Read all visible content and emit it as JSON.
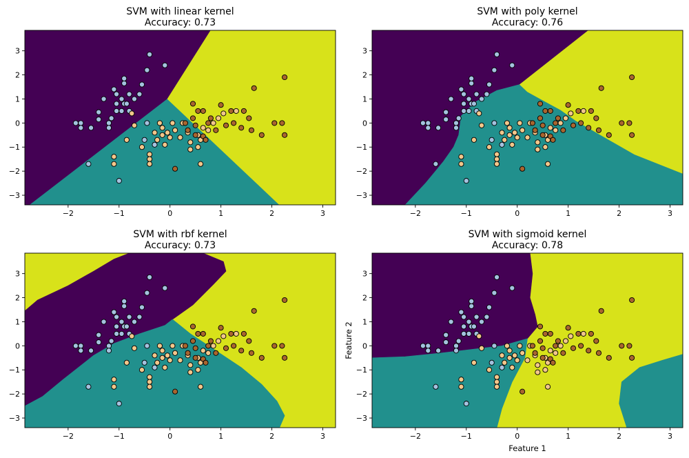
{
  "chart_data": [
    {
      "type": "scatter",
      "title": "SVM with linear kernel",
      "subtitle": "Accuracy: 0.73",
      "kernel": "linear",
      "xlabel": "",
      "ylabel": "",
      "xlim": [
        -2.85,
        3.25
      ],
      "ylim": [
        -3.4,
        3.85
      ],
      "xticks": [
        -2,
        -1,
        0,
        1,
        2,
        3
      ],
      "yticks": [
        -3,
        -2,
        -1,
        0,
        1,
        2,
        3
      ],
      "grid": false,
      "regions": [
        {
          "class": 0,
          "color": "#440154",
          "polygon": [
            [
              -2.85,
              -3.4
            ],
            [
              -2.85,
              3.85
            ],
            [
              0.8,
              3.85
            ],
            [
              -0.05,
              1.0
            ],
            [
              -2.75,
              -3.4
            ]
          ]
        },
        {
          "class": 1,
          "color": "#21908d",
          "polygon": [
            [
              -2.75,
              -3.4
            ],
            [
              -0.05,
              1.0
            ],
            [
              2.15,
              -3.4
            ]
          ]
        },
        {
          "class": 2,
          "color": "#d8e21a",
          "polygon": [
            [
              2.15,
              -3.4
            ],
            [
              -0.05,
              1.0
            ],
            [
              0.8,
              3.85
            ],
            [
              3.25,
              3.85
            ],
            [
              3.25,
              -3.4
            ]
          ]
        }
      ]
    },
    {
      "type": "scatter",
      "title": "SVM with poly kernel",
      "subtitle": "Accuracy: 0.76",
      "kernel": "poly",
      "xlabel": "",
      "ylabel": "",
      "xlim": [
        -2.85,
        3.25
      ],
      "ylim": [
        -3.4,
        3.85
      ],
      "xticks": [
        -2,
        -1,
        0,
        1,
        2,
        3
      ],
      "yticks": [
        -3,
        -2,
        -1,
        0,
        1,
        2,
        3
      ],
      "grid": false,
      "regions": [
        {
          "class": 0,
          "color": "#440154",
          "polygon": [
            [
              -2.85,
              -3.4
            ],
            [
              -2.85,
              3.85
            ],
            [
              1.4,
              3.85
            ],
            [
              0.05,
              1.6
            ],
            [
              -0.4,
              1.35
            ],
            [
              -0.8,
              0.9
            ],
            [
              -1.1,
              0.3
            ],
            [
              -1.15,
              -0.5
            ],
            [
              -1.25,
              -1.0
            ],
            [
              -1.45,
              -1.6
            ],
            [
              -1.8,
              -2.5
            ],
            [
              -2.2,
              -3.4
            ]
          ]
        },
        {
          "class": 1,
          "color": "#21908d",
          "polygon": [
            [
              -2.2,
              -3.4
            ],
            [
              -1.8,
              -2.5
            ],
            [
              -1.45,
              -1.6
            ],
            [
              -1.25,
              -1.0
            ],
            [
              -1.15,
              -0.5
            ],
            [
              -1.1,
              0.3
            ],
            [
              -0.8,
              0.9
            ],
            [
              -0.4,
              1.35
            ],
            [
              0.05,
              1.6
            ],
            [
              0.2,
              1.3
            ],
            [
              0.5,
              0.95
            ],
            [
              0.85,
              0.55
            ],
            [
              1.15,
              0.1
            ],
            [
              1.6,
              -0.45
            ],
            [
              2.3,
              -1.3
            ],
            [
              3.25,
              -2.1
            ],
            [
              3.25,
              -3.4
            ]
          ]
        },
        {
          "class": 2,
          "color": "#d8e21a",
          "polygon": [
            [
              0.05,
              1.6
            ],
            [
              1.4,
              3.85
            ],
            [
              3.25,
              3.85
            ],
            [
              3.25,
              -2.1
            ],
            [
              2.3,
              -1.3
            ],
            [
              1.6,
              -0.45
            ],
            [
              1.15,
              0.1
            ],
            [
              0.85,
              0.55
            ],
            [
              0.5,
              0.95
            ],
            [
              0.2,
              1.3
            ]
          ]
        }
      ]
    },
    {
      "type": "scatter",
      "title": "SVM with rbf kernel",
      "subtitle": "Accuracy: 0.73",
      "kernel": "rbf",
      "xlabel": "",
      "ylabel": "",
      "xlim": [
        -2.85,
        3.25
      ],
      "ylim": [
        -3.4,
        3.85
      ],
      "xticks": [
        -2,
        -1,
        0,
        1,
        2,
        3
      ],
      "yticks": [
        -3,
        -2,
        -1,
        0,
        1,
        2,
        3
      ],
      "grid": false,
      "regions": [
        {
          "class": 2,
          "color": "#d8e21a",
          "polygon": [
            [
              -2.85,
              -3.4
            ],
            [
              -2.85,
              3.85
            ],
            [
              3.25,
              3.85
            ],
            [
              3.25,
              -3.4
            ]
          ]
        },
        {
          "class": 0,
          "color": "#440154",
          "polygon": [
            [
              -2.85,
              -2.5
            ],
            [
              -2.85,
              1.45
            ],
            [
              -2.6,
              1.9
            ],
            [
              -2.0,
              2.5
            ],
            [
              -1.5,
              3.1
            ],
            [
              -1.1,
              3.6
            ],
            [
              -0.8,
              3.85
            ],
            [
              0.65,
              3.85
            ],
            [
              1.05,
              3.5
            ],
            [
              1.1,
              3.1
            ],
            [
              0.85,
              2.55
            ],
            [
              0.45,
              1.7
            ],
            [
              0.05,
              1.1
            ],
            [
              -0.1,
              0.85
            ],
            [
              -0.6,
              0.5
            ],
            [
              -1.1,
              0.1
            ],
            [
              -1.5,
              -0.4
            ],
            [
              -2.1,
              -1.4
            ],
            [
              -2.5,
              -2.1
            ]
          ]
        },
        {
          "class": 1,
          "color": "#21908d",
          "polygon": [
            [
              -2.85,
              -3.4
            ],
            [
              -2.85,
              -2.5
            ],
            [
              -2.5,
              -2.1
            ],
            [
              -2.1,
              -1.4
            ],
            [
              -1.5,
              -0.4
            ],
            [
              -1.1,
              0.1
            ],
            [
              -0.6,
              0.5
            ],
            [
              -0.1,
              0.85
            ],
            [
              0.05,
              1.1
            ],
            [
              0.4,
              0.5
            ],
            [
              0.9,
              -0.2
            ],
            [
              1.4,
              -0.9
            ],
            [
              1.8,
              -1.6
            ],
            [
              2.1,
              -2.3
            ],
            [
              2.25,
              -2.9
            ],
            [
              2.15,
              -3.4
            ]
          ]
        }
      ]
    },
    {
      "type": "scatter",
      "title": "SVM with sigmoid kernel",
      "subtitle": "Accuracy: 0.78",
      "kernel": "sigmoid",
      "xlabel": "Feature 1",
      "ylabel": "Feature 2",
      "xlim": [
        -2.85,
        3.25
      ],
      "ylim": [
        -3.4,
        3.85
      ],
      "xticks": [
        -2,
        -1,
        0,
        1,
        2,
        3
      ],
      "yticks": [
        -3,
        -2,
        -1,
        0,
        1,
        2,
        3
      ],
      "grid": false,
      "regions": [
        {
          "class": 2,
          "color": "#d8e21a",
          "polygon": [
            [
              -2.85,
              -3.4
            ],
            [
              -2.85,
              3.85
            ],
            [
              3.25,
              3.85
            ],
            [
              3.25,
              -3.4
            ]
          ]
        },
        {
          "class": 0,
          "color": "#440154",
          "polygon": [
            [
              -2.85,
              -0.5
            ],
            [
              -2.85,
              3.85
            ],
            [
              0.25,
              3.85
            ],
            [
              0.3,
              3.0
            ],
            [
              0.25,
              2.0
            ],
            [
              0.35,
              1.3
            ],
            [
              0.4,
              0.8
            ],
            [
              0.2,
              0.3
            ],
            [
              -0.3,
              0.0
            ],
            [
              -0.9,
              -0.15
            ],
            [
              -1.5,
              -0.3
            ],
            [
              -2.2,
              -0.45
            ]
          ]
        },
        {
          "class": 1,
          "color": "#21908d",
          "polygon": [
            [
              -2.85,
              -3.4
            ],
            [
              -2.85,
              -0.5
            ],
            [
              -2.2,
              -0.45
            ],
            [
              -1.5,
              -0.3
            ],
            [
              -0.9,
              -0.15
            ],
            [
              -0.3,
              0.0
            ],
            [
              0.2,
              0.3
            ],
            [
              0.15,
              -0.5
            ],
            [
              -0.1,
              -1.5
            ],
            [
              -0.3,
              -2.6
            ],
            [
              -0.4,
              -3.4
            ]
          ]
        },
        {
          "class": 1,
          "color": "#21908d",
          "polygon": [
            [
              3.25,
              -3.4
            ],
            [
              3.25,
              -0.35
            ],
            [
              2.85,
              -0.6
            ],
            [
              2.4,
              -0.9
            ],
            [
              2.05,
              -1.5
            ],
            [
              2.0,
              -2.4
            ],
            [
              2.15,
              -3.4
            ]
          ]
        }
      ]
    }
  ],
  "points": {
    "class_colors": [
      "#a4c2df",
      "#f2c78b",
      "#a8652f"
    ],
    "edge_color": "#000000",
    "data": [
      [
        -1.75,
        0.0,
        0
      ],
      [
        -1.85,
        0.0,
        0
      ],
      [
        -1.75,
        -0.2,
        0
      ],
      [
        -1.55,
        -0.2,
        0
      ],
      [
        -1.4,
        0.15,
        0
      ],
      [
        -1.4,
        0.45,
        0
      ],
      [
        -1.3,
        1.0,
        0
      ],
      [
        -1.2,
        0.0,
        0
      ],
      [
        -1.2,
        -0.2,
        0
      ],
      [
        -1.15,
        0.2,
        0
      ],
      [
        -1.1,
        1.4,
        0
      ],
      [
        -1.05,
        0.8,
        0
      ],
      [
        -1.05,
        1.2,
        0
      ],
      [
        -1.05,
        0.5,
        0
      ],
      [
        -0.95,
        0.5,
        0
      ],
      [
        -0.9,
        0.8,
        0
      ],
      [
        -0.95,
        1.0,
        0
      ],
      [
        -0.85,
        0.8,
        0
      ],
      [
        -0.9,
        1.65,
        0
      ],
      [
        -0.9,
        1.85,
        0
      ],
      [
        -0.8,
        1.2,
        0
      ],
      [
        -0.8,
        0.5,
        0
      ],
      [
        -0.7,
        1.0,
        0
      ],
      [
        -0.6,
        1.2,
        0
      ],
      [
        -0.55,
        1.6,
        0
      ],
      [
        -0.45,
        2.2,
        0
      ],
      [
        -0.4,
        2.85,
        0
      ],
      [
        -0.45,
        0.0,
        0
      ],
      [
        -0.5,
        -0.7,
        0
      ],
      [
        -0.1,
        2.4,
        0
      ],
      [
        -1.6,
        -1.7,
        0
      ],
      [
        -0.3,
        -0.9,
        0
      ],
      [
        -1.0,
        -2.4,
        0
      ],
      [
        -1.1,
        -1.4,
        1
      ],
      [
        -1.1,
        -1.7,
        1
      ],
      [
        -0.85,
        -0.7,
        1
      ],
      [
        -0.7,
        -0.1,
        1
      ],
      [
        -0.55,
        -1.0,
        1
      ],
      [
        -0.4,
        -1.3,
        1
      ],
      [
        -0.4,
        -1.5,
        1
      ],
      [
        -0.4,
        -1.7,
        1
      ],
      [
        -0.3,
        -0.4,
        1
      ],
      [
        -0.25,
        -0.7,
        1
      ],
      [
        -0.2,
        0.0,
        1
      ],
      [
        -0.15,
        -0.2,
        1
      ],
      [
        -0.15,
        -0.5,
        1
      ],
      [
        -0.1,
        -0.9,
        1
      ],
      [
        -0.05,
        -0.4,
        1
      ],
      [
        0.0,
        -0.6,
        1
      ],
      [
        0.05,
        0.0,
        1
      ],
      [
        0.1,
        -0.3,
        1
      ],
      [
        0.2,
        -0.6,
        1
      ],
      [
        0.25,
        0.0,
        1
      ],
      [
        0.35,
        -0.4,
        1
      ],
      [
        0.4,
        -0.8,
        1
      ],
      [
        0.55,
        -0.5,
        1
      ],
      [
        0.55,
        -1.0,
        1
      ],
      [
        0.65,
        -0.2,
        1
      ],
      [
        0.75,
        -0.3,
        1
      ],
      [
        0.85,
        0.0,
        1
      ],
      [
        0.95,
        0.2,
        1
      ],
      [
        1.05,
        0.4,
        1
      ],
      [
        1.3,
        0.5,
        1
      ],
      [
        0.4,
        -1.1,
        1
      ],
      [
        0.6,
        -1.7,
        1
      ],
      [
        0.6,
        -0.7,
        1
      ],
      [
        -0.75,
        0.4,
        1
      ],
      [
        0.1,
        -1.9,
        2
      ],
      [
        0.3,
        0.0,
        2
      ],
      [
        0.35,
        -0.3,
        2
      ],
      [
        0.45,
        0.8,
        2
      ],
      [
        0.5,
        -0.5,
        2
      ],
      [
        0.55,
        0.5,
        2
      ],
      [
        0.65,
        0.5,
        2
      ],
      [
        0.65,
        -0.55,
        2
      ],
      [
        0.7,
        -0.7,
        2
      ],
      [
        0.75,
        0.0,
        2
      ],
      [
        0.9,
        -0.3,
        2
      ],
      [
        1.0,
        0.75,
        2
      ],
      [
        1.1,
        -0.1,
        2
      ],
      [
        1.2,
        0.5,
        2
      ],
      [
        1.25,
        0.0,
        2
      ],
      [
        1.4,
        -0.2,
        2
      ],
      [
        1.45,
        0.5,
        2
      ],
      [
        1.55,
        0.2,
        2
      ],
      [
        1.6,
        -0.3,
        2
      ],
      [
        1.65,
        1.45,
        2
      ],
      [
        1.8,
        -0.5,
        2
      ],
      [
        2.05,
        0.0,
        2
      ],
      [
        2.2,
        0.0,
        2
      ],
      [
        2.25,
        -0.5,
        2
      ],
      [
        2.25,
        1.9,
        2
      ],
      [
        0.45,
        0.2,
        2
      ],
      [
        0.5,
        -0.1,
        2
      ],
      [
        0.8,
        0.2,
        2
      ]
    ]
  }
}
